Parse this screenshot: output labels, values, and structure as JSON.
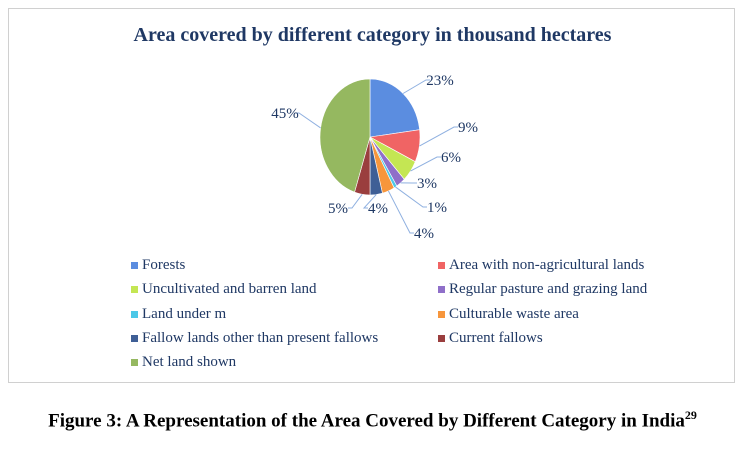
{
  "chart_data": {
    "type": "pie",
    "title": "Area covered by different category in thousand hectares",
    "categories": [
      "Forests",
      "Area with non-agricultural lands",
      "Uncultivated and barren land",
      "Regular pasture and grazing land",
      "Land under m",
      "Culturable waste area",
      "Fallow lands other than present fallows",
      "Current fallows",
      "Net land shown"
    ],
    "values": [
      23,
      9,
      6,
      3,
      1,
      4,
      4,
      5,
      45
    ],
    "labels": [
      "23%",
      "9%",
      "6%",
      "3%",
      "1%",
      "4%",
      "4%",
      "5%",
      "45%"
    ],
    "colors": [
      "#5b8de0",
      "#f06464",
      "#c4e653",
      "#8f6fc9",
      "#4cc8e8",
      "#f7963c",
      "#3f5f96",
      "#9a3e3e",
      "#95b860"
    ],
    "legend_position": "bottom"
  },
  "caption": {
    "text": "Figure 3: A Representation of the Area Covered by Different Category in India",
    "ref": "29"
  }
}
